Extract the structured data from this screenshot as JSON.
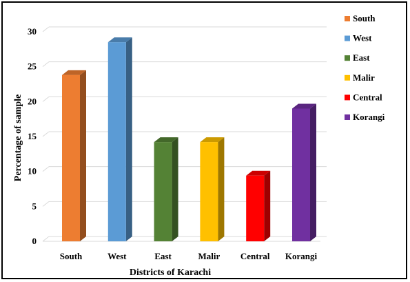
{
  "chart_data": {
    "type": "bar",
    "categories": [
      "South",
      "West",
      "East",
      "Malir",
      "Central",
      "Korangi"
    ],
    "values": [
      23.8,
      28.5,
      14.2,
      14.2,
      9.4,
      19.0
    ],
    "colors": [
      "#ED7D31",
      "#5B9BD5",
      "#548235",
      "#FFC000",
      "#FF0000",
      "#7030A0"
    ],
    "title": "",
    "xlabel": "Districts of Karachi",
    "ylabel": "Percentage of sample",
    "ylim": [
      0,
      30
    ],
    "yticks": [
      0,
      5,
      10,
      15,
      20,
      25,
      30
    ],
    "grid": true,
    "style": "3d-bar",
    "legend": {
      "position": "right",
      "entries": [
        "South",
        "West",
        "East",
        "Malir",
        "Central",
        "Korangi"
      ]
    }
  }
}
